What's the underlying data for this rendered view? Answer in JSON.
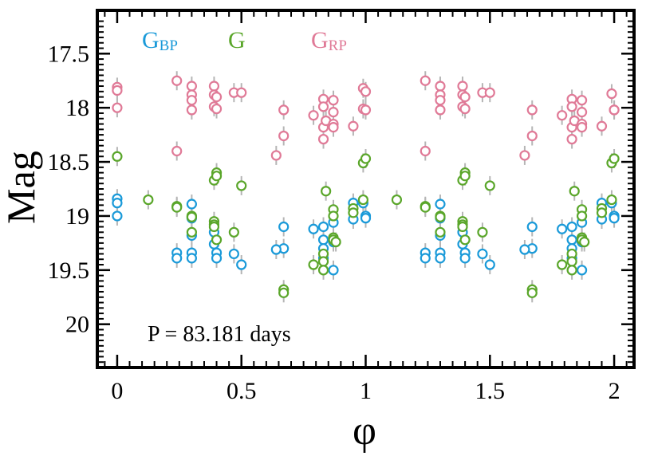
{
  "chart_data": {
    "type": "scatter",
    "xlabel": "φ",
    "ylabel": "Mag",
    "xlim": [
      -0.08,
      2.08
    ],
    "ylim": [
      20.4,
      17.1
    ],
    "y_inverted": true,
    "x_ticks": [
      0,
      0.5,
      1,
      1.5,
      2
    ],
    "x_tick_labels": [
      "0",
      "0.5",
      "1",
      "1.5",
      "2"
    ],
    "y_ticks": [
      17.5,
      18,
      18.5,
      19,
      19.5,
      20
    ],
    "y_tick_labels": [
      "17.5",
      "18",
      "18.5",
      "19",
      "19.5",
      "20"
    ],
    "annotation": "P = 83.181 days",
    "legend": [
      {
        "main": "G",
        "sub": "BP",
        "color": "#1a9ad9"
      },
      {
        "main": "G",
        "sub": "",
        "color": "#5aa62a"
      },
      {
        "main": "G",
        "sub": "RP",
        "color": "#e07a97"
      }
    ],
    "error_bar_color": "#b5b5b5",
    "series": [
      {
        "name": "GBP",
        "color": "#1a9ad9",
        "points": [
          [
            0.0,
            18.84
          ],
          [
            0.0,
            18.88
          ],
          [
            0.0,
            19.0
          ],
          [
            0.24,
            19.34
          ],
          [
            0.24,
            19.39
          ],
          [
            0.3,
            18.89
          ],
          [
            0.3,
            19.02
          ],
          [
            0.3,
            19.18
          ],
          [
            0.3,
            19.34
          ],
          [
            0.3,
            19.39
          ],
          [
            0.39,
            19.15
          ],
          [
            0.39,
            19.26
          ],
          [
            0.4,
            19.34
          ],
          [
            0.4,
            19.39
          ],
          [
            0.47,
            19.35
          ],
          [
            0.5,
            19.45
          ],
          [
            0.67,
            19.1
          ],
          [
            0.67,
            19.3
          ],
          [
            0.64,
            19.31
          ],
          [
            0.79,
            19.12
          ],
          [
            0.83,
            19.1
          ],
          [
            0.83,
            19.22
          ],
          [
            0.83,
            19.3
          ],
          [
            0.83,
            19.39
          ],
          [
            0.87,
            19.06
          ],
          [
            0.87,
            19.24
          ],
          [
            0.87,
            19.5
          ],
          [
            0.95,
            18.88
          ],
          [
            0.95,
            19.03
          ],
          [
            0.99,
            18.88
          ],
          [
            1.0,
            19.0
          ],
          [
            1.0,
            19.02
          ],
          [
            1.24,
            19.34
          ],
          [
            1.24,
            19.39
          ],
          [
            1.3,
            18.89
          ],
          [
            1.3,
            19.02
          ],
          [
            1.3,
            19.18
          ],
          [
            1.3,
            19.34
          ],
          [
            1.3,
            19.39
          ],
          [
            1.39,
            19.15
          ],
          [
            1.39,
            19.26
          ],
          [
            1.4,
            19.34
          ],
          [
            1.4,
            19.39
          ],
          [
            1.47,
            19.35
          ],
          [
            1.5,
            19.45
          ],
          [
            1.67,
            19.1
          ],
          [
            1.67,
            19.3
          ],
          [
            1.64,
            19.31
          ],
          [
            1.79,
            19.12
          ],
          [
            1.83,
            19.1
          ],
          [
            1.83,
            19.22
          ],
          [
            1.83,
            19.3
          ],
          [
            1.83,
            19.39
          ],
          [
            1.87,
            19.06
          ],
          [
            1.87,
            19.24
          ],
          [
            1.87,
            19.5
          ],
          [
            1.95,
            18.88
          ],
          [
            1.95,
            19.03
          ],
          [
            1.99,
            18.88
          ],
          [
            2.0,
            19.0
          ],
          [
            2.0,
            19.02
          ]
        ]
      },
      {
        "name": "G",
        "color": "#5aa62a",
        "points": [
          [
            0.0,
            18.45
          ],
          [
            0.125,
            18.85
          ],
          [
            0.24,
            18.91
          ],
          [
            0.24,
            18.92
          ],
          [
            0.3,
            19.0
          ],
          [
            0.3,
            19.01
          ],
          [
            0.3,
            19.15
          ],
          [
            0.39,
            18.67
          ],
          [
            0.4,
            18.6
          ],
          [
            0.4,
            18.63
          ],
          [
            0.39,
            19.05
          ],
          [
            0.39,
            19.08
          ],
          [
            0.39,
            19.1
          ],
          [
            0.4,
            19.22
          ],
          [
            0.47,
            19.15
          ],
          [
            0.5,
            18.72
          ],
          [
            0.67,
            19.68
          ],
          [
            0.67,
            19.71
          ],
          [
            0.79,
            19.45
          ],
          [
            0.83,
            19.35
          ],
          [
            0.83,
            19.42
          ],
          [
            0.83,
            19.5
          ],
          [
            0.84,
            18.77
          ],
          [
            0.87,
            18.94
          ],
          [
            0.87,
            19.0
          ],
          [
            0.87,
            19.2
          ],
          [
            0.87,
            19.22
          ],
          [
            0.88,
            19.24
          ],
          [
            0.95,
            18.93
          ],
          [
            0.95,
            18.97
          ],
          [
            0.99,
            18.85
          ],
          [
            0.99,
            18.51
          ],
          [
            1.0,
            18.47
          ],
          [
            1.125,
            18.85
          ],
          [
            1.24,
            18.91
          ],
          [
            1.24,
            18.92
          ],
          [
            1.3,
            19.0
          ],
          [
            1.3,
            19.01
          ],
          [
            1.3,
            19.15
          ],
          [
            1.39,
            18.67
          ],
          [
            1.4,
            18.6
          ],
          [
            1.4,
            18.63
          ],
          [
            1.39,
            19.05
          ],
          [
            1.39,
            19.08
          ],
          [
            1.39,
            19.1
          ],
          [
            1.4,
            19.22
          ],
          [
            1.47,
            19.15
          ],
          [
            1.5,
            18.72
          ],
          [
            1.67,
            19.68
          ],
          [
            1.67,
            19.71
          ],
          [
            1.79,
            19.45
          ],
          [
            1.83,
            19.35
          ],
          [
            1.83,
            19.42
          ],
          [
            1.83,
            19.5
          ],
          [
            1.84,
            18.77
          ],
          [
            1.87,
            18.94
          ],
          [
            1.87,
            19.0
          ],
          [
            1.87,
            19.2
          ],
          [
            1.87,
            19.22
          ],
          [
            1.88,
            19.24
          ],
          [
            1.95,
            18.93
          ],
          [
            1.95,
            18.97
          ],
          [
            1.99,
            18.85
          ],
          [
            1.99,
            18.51
          ],
          [
            2.0,
            18.47
          ]
        ]
      },
      {
        "name": "GRP",
        "color": "#e07a97",
        "points": [
          [
            0.0,
            17.81
          ],
          [
            0.0,
            17.84
          ],
          [
            0.0,
            18.0
          ],
          [
            0.24,
            17.75
          ],
          [
            0.24,
            18.4
          ],
          [
            0.3,
            17.8
          ],
          [
            0.3,
            17.88
          ],
          [
            0.3,
            17.93
          ],
          [
            0.3,
            18.02
          ],
          [
            0.39,
            17.8
          ],
          [
            0.39,
            17.88
          ],
          [
            0.4,
            17.9
          ],
          [
            0.39,
            17.99
          ],
          [
            0.4,
            18.01
          ],
          [
            0.47,
            17.86
          ],
          [
            0.5,
            17.86
          ],
          [
            0.67,
            18.02
          ],
          [
            0.67,
            18.26
          ],
          [
            0.64,
            18.44
          ],
          [
            0.79,
            18.07
          ],
          [
            0.83,
            17.92
          ],
          [
            0.83,
            17.99
          ],
          [
            0.83,
            18.18
          ],
          [
            0.83,
            18.29
          ],
          [
            0.84,
            18.12
          ],
          [
            0.87,
            17.93
          ],
          [
            0.87,
            18.04
          ],
          [
            0.87,
            18.15
          ],
          [
            0.87,
            18.18
          ],
          [
            0.95,
            18.17
          ],
          [
            0.99,
            17.82
          ],
          [
            1.0,
            17.85
          ],
          [
            0.99,
            18.01
          ],
          [
            1.0,
            18.02
          ],
          [
            1.24,
            17.75
          ],
          [
            1.24,
            18.4
          ],
          [
            1.3,
            17.8
          ],
          [
            1.3,
            17.88
          ],
          [
            1.3,
            17.93
          ],
          [
            1.3,
            18.02
          ],
          [
            1.39,
            17.8
          ],
          [
            1.39,
            17.88
          ],
          [
            1.4,
            17.9
          ],
          [
            1.39,
            17.99
          ],
          [
            1.4,
            18.01
          ],
          [
            1.47,
            17.86
          ],
          [
            1.5,
            17.86
          ],
          [
            1.67,
            18.02
          ],
          [
            1.67,
            18.26
          ],
          [
            1.64,
            18.44
          ],
          [
            1.79,
            18.07
          ],
          [
            1.83,
            17.92
          ],
          [
            1.83,
            17.99
          ],
          [
            1.83,
            18.18
          ],
          [
            1.83,
            18.29
          ],
          [
            1.84,
            18.12
          ],
          [
            1.87,
            17.93
          ],
          [
            1.87,
            18.04
          ],
          [
            1.87,
            18.15
          ],
          [
            1.87,
            18.18
          ],
          [
            1.95,
            18.17
          ],
          [
            1.99,
            17.87
          ],
          [
            2.0,
            18.02
          ],
          [
            2.0,
            18.02
          ]
        ]
      }
    ]
  }
}
